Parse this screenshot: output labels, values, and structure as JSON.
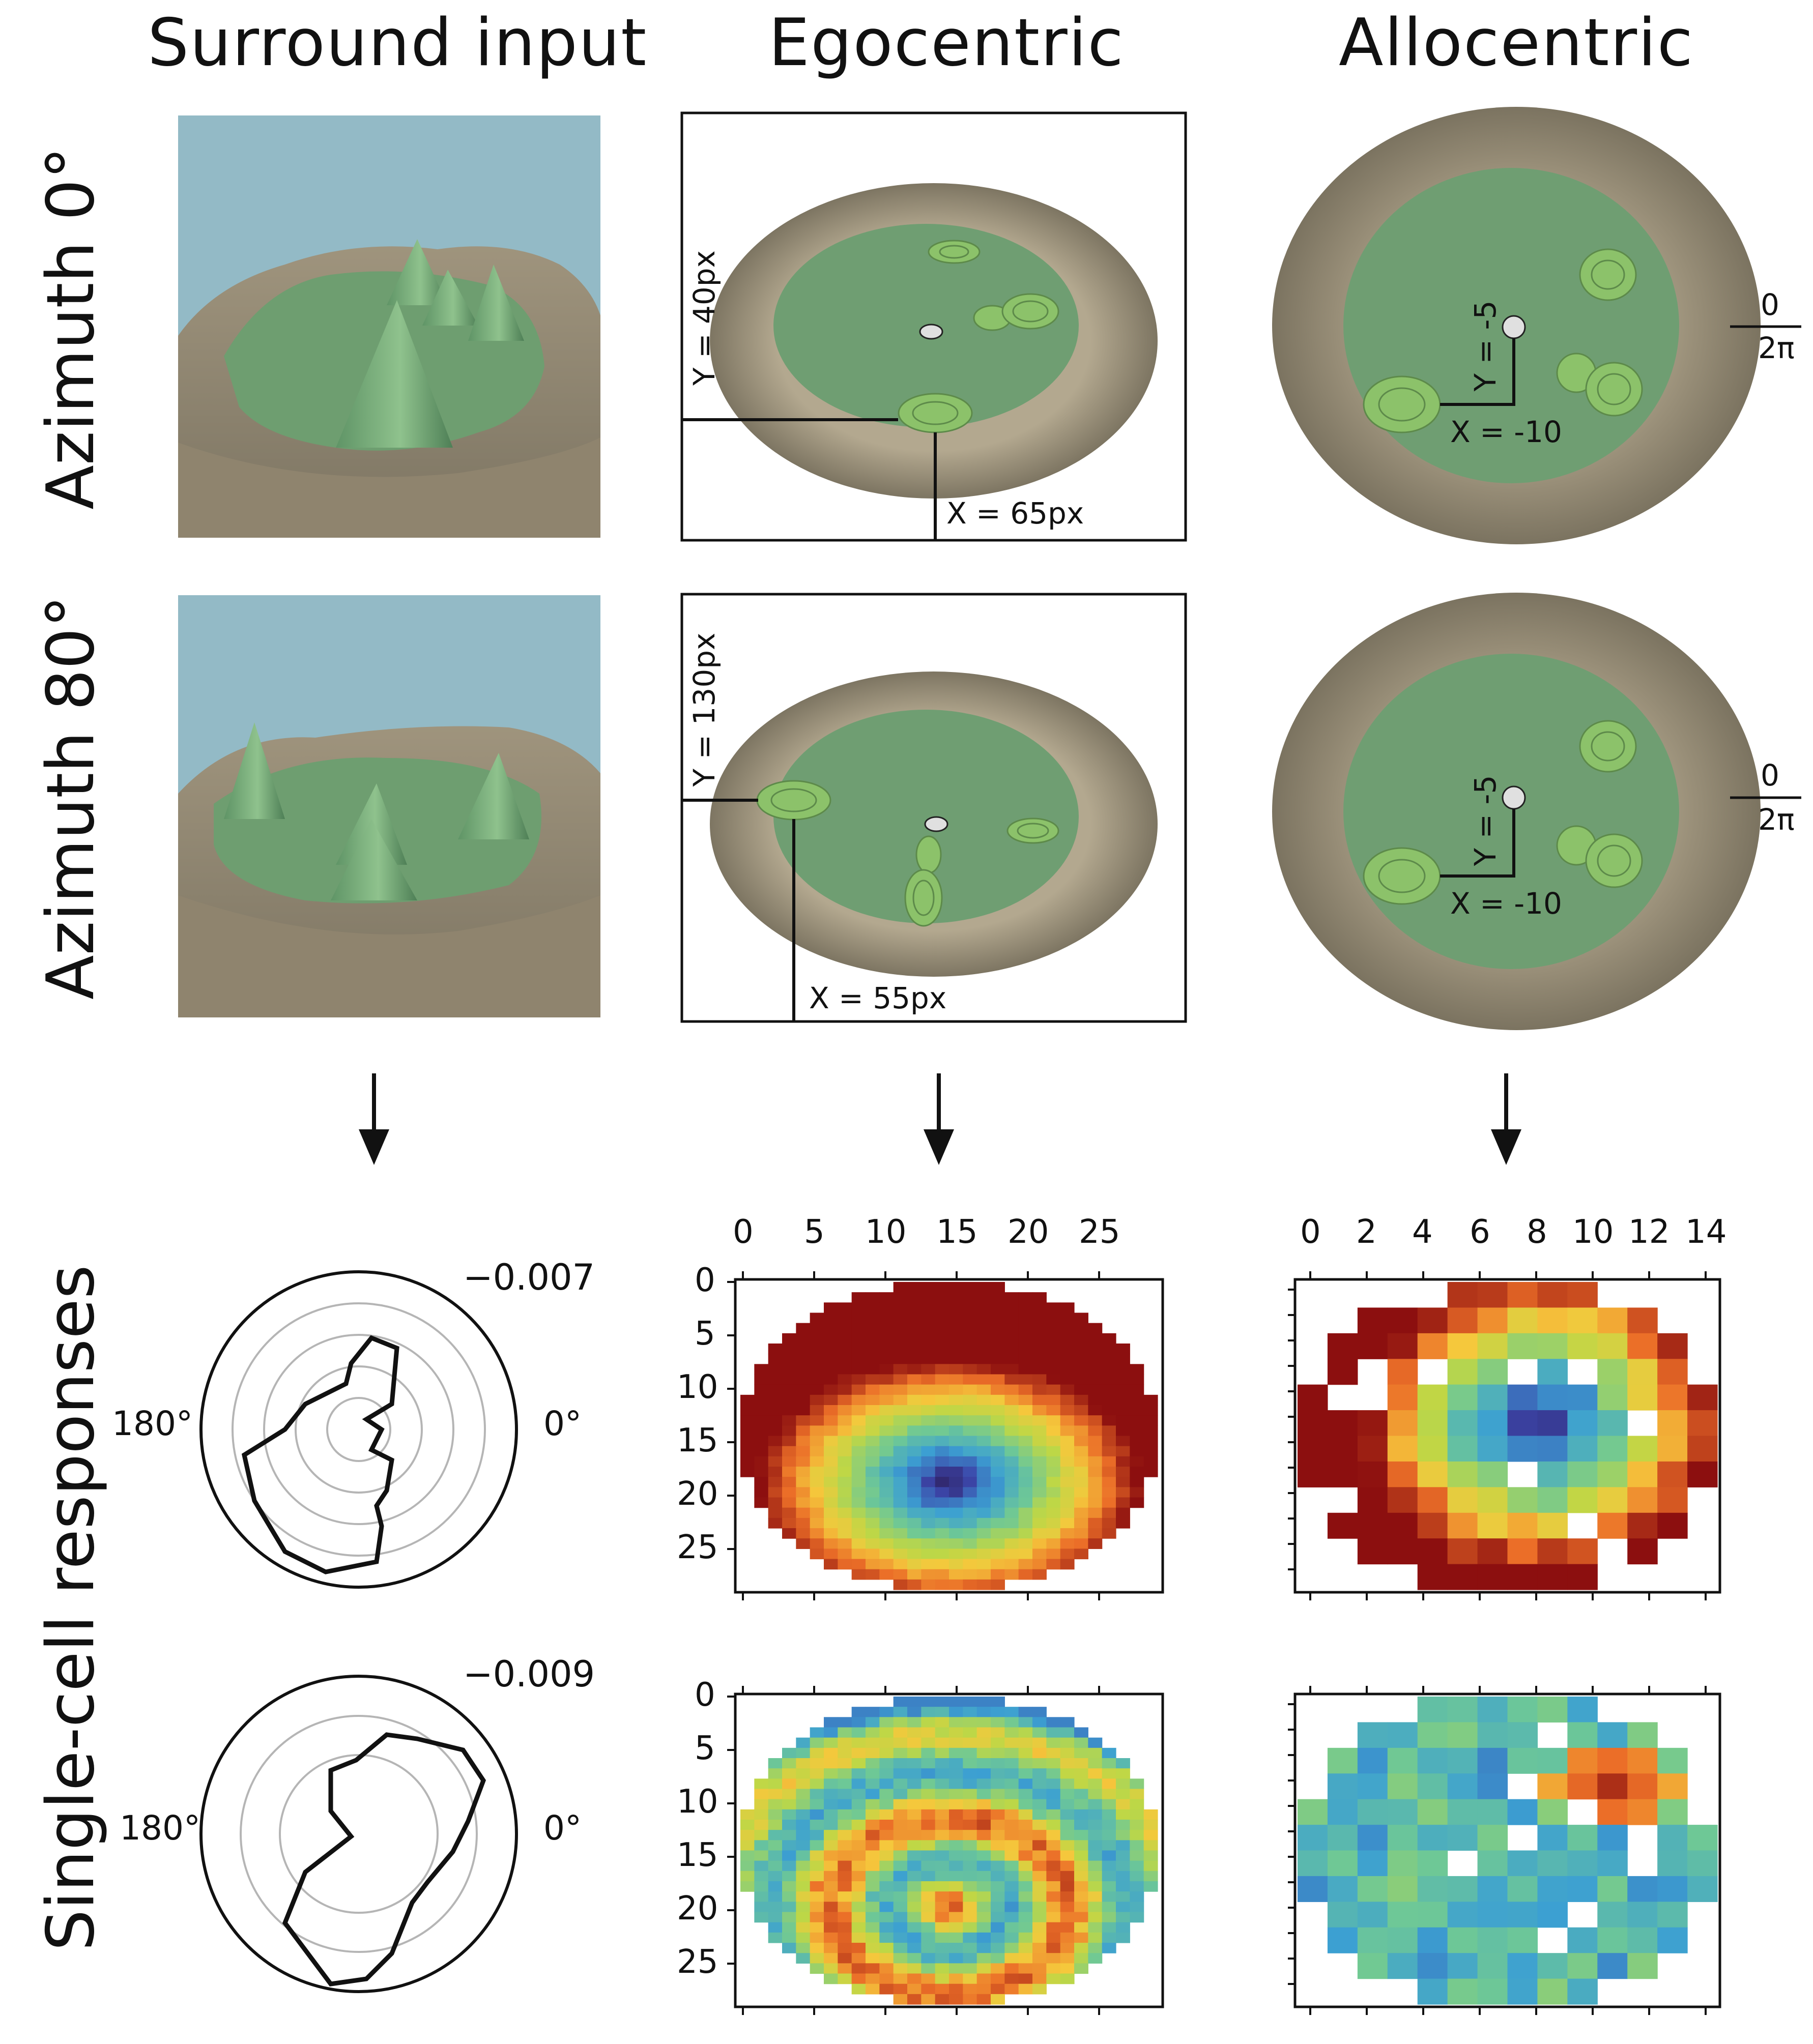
{
  "columns": {
    "surround": "Surround input",
    "egocentric": "Egocentric",
    "allocentric": "Allocentric"
  },
  "rows": {
    "az0": "Azimuth 0°",
    "az80": "Azimuth 80°",
    "responses": "Single-cell responses"
  },
  "ego_annot": {
    "row1_y": "Y = 40px",
    "row1_x": "X = 65px",
    "row2_y": "Y = 130px",
    "row2_x": "X = 55px"
  },
  "allo_annot": {
    "row1_y": "Y = -5",
    "row1_x": "X = -10",
    "row2_y": "Y = -5",
    "row2_x": "X = -10",
    "angle_top": "0",
    "angle_bottom": "2π"
  },
  "polar": {
    "row1_max": "−0.007",
    "row2_max": "−0.009",
    "left_label": "180°",
    "right_label": "0°"
  },
  "ego_heat_axis": {
    "x_ticks": [
      "0",
      "5",
      "10",
      "15",
      "20",
      "25"
    ],
    "y_ticks": [
      "0",
      "5",
      "10",
      "15",
      "20",
      "25"
    ]
  },
  "allo_heat_axis": {
    "x_ticks": [
      "0",
      "2",
      "4",
      "6",
      "8",
      "10",
      "12",
      "14"
    ]
  },
  "colors": {
    "sky": "#93bac6",
    "terrain": "#8a7f6b",
    "arena_green": "#6f9e72",
    "object_green": "#8cc26a",
    "heat_low": "#2a1446",
    "heat_high": "#8b0a0a"
  }
}
